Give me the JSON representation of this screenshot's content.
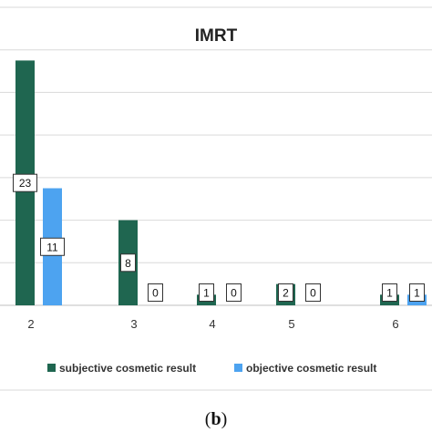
{
  "chart_data": {
    "type": "bar",
    "title": "IMRT",
    "categories": [
      "2",
      "3",
      "4",
      "5",
      "6"
    ],
    "series": [
      {
        "name": "subjective cosmetic result",
        "color": "#1f6650",
        "values": [
          23,
          8,
          1,
          2,
          1
        ]
      },
      {
        "name": "objective cosmetic result",
        "color": "#4da3f0",
        "values": [
          11,
          0,
          0,
          0,
          1
        ]
      }
    ],
    "ylim": [
      0,
      28
    ],
    "grid": true,
    "legend": "bottom",
    "data_labels": true
  },
  "caption": {
    "open": "(",
    "letter": "b",
    "close": ")"
  }
}
